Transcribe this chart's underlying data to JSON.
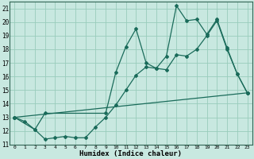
{
  "xlabel": "Humidex (Indice chaleur)",
  "bg_color": "#c8e8e0",
  "grid_color": "#99ccbb",
  "line_color": "#1a6b5a",
  "xlim": [
    -0.5,
    23.5
  ],
  "ylim": [
    11,
    21.5
  ],
  "yticks": [
    11,
    12,
    13,
    14,
    15,
    16,
    17,
    18,
    19,
    20,
    21
  ],
  "xticks": [
    0,
    1,
    2,
    3,
    4,
    5,
    6,
    7,
    8,
    9,
    10,
    11,
    12,
    13,
    14,
    15,
    16,
    17,
    18,
    19,
    20,
    21,
    22,
    23
  ],
  "line1_x": [
    0,
    1,
    2,
    3,
    4,
    5,
    6,
    7,
    8,
    9,
    10,
    11,
    12,
    13,
    14,
    15,
    16,
    17,
    18,
    19,
    20,
    21,
    22,
    23
  ],
  "line1_y": [
    13.0,
    12.7,
    12.1,
    11.4,
    11.5,
    11.6,
    11.5,
    11.5,
    12.3,
    13.0,
    13.9,
    15.0,
    16.1,
    16.7,
    16.6,
    16.5,
    17.6,
    17.5,
    18.0,
    19.0,
    20.1,
    18.0,
    16.2,
    14.8
  ],
  "line2_x": [
    0,
    2,
    3,
    9,
    10,
    11,
    12,
    13,
    14,
    15,
    16,
    17,
    18,
    19,
    20,
    21,
    22,
    23
  ],
  "line2_y": [
    13.0,
    12.1,
    13.3,
    13.3,
    16.3,
    18.2,
    19.5,
    17.0,
    16.6,
    17.5,
    21.2,
    20.1,
    20.2,
    19.1,
    20.2,
    18.1,
    16.2,
    14.8
  ],
  "line3_x": [
    0,
    23
  ],
  "line3_y": [
    13.0,
    14.8
  ]
}
